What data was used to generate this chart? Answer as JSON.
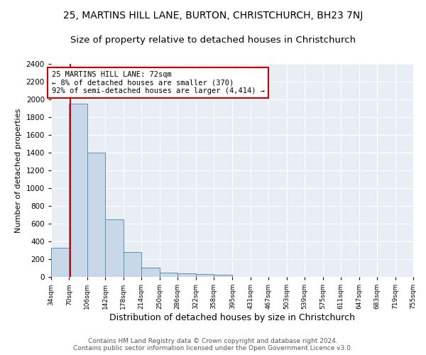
{
  "title1": "25, MARTINS HILL LANE, BURTON, CHRISTCHURCH, BH23 7NJ",
  "title2": "Size of property relative to detached houses in Christchurch",
  "xlabel": "Distribution of detached houses by size in Christchurch",
  "ylabel": "Number of detached properties",
  "footnote": "Contains HM Land Registry data © Crown copyright and database right 2024.\nContains public sector information licensed under the Open Government Licence v3.0.",
  "bin_edges": [
    34,
    70,
    106,
    142,
    178,
    214,
    250,
    286,
    322,
    358,
    395,
    431,
    467,
    503,
    539,
    575,
    611,
    647,
    683,
    719,
    755
  ],
  "bar_heights": [
    325,
    1950,
    1400,
    650,
    280,
    105,
    45,
    40,
    35,
    22,
    0,
    0,
    0,
    0,
    0,
    0,
    0,
    0,
    0,
    0
  ],
  "bar_color": "#c8d8e8",
  "bar_edgecolor": "#6090b0",
  "property_size": 72,
  "annotation_text": "25 MARTINS HILL LANE: 72sqm\n← 8% of detached houses are smaller (370)\n92% of semi-detached houses are larger (4,414) →",
  "annotation_box_color": "#cc0000",
  "vline_color": "#cc0000",
  "ylim": [
    0,
    2400
  ],
  "yticks": [
    0,
    200,
    400,
    600,
    800,
    1000,
    1200,
    1400,
    1600,
    1800,
    2000,
    2200,
    2400
  ],
  "bg_color": "#e8eef4",
  "grid_color": "#ffffff",
  "title1_fontsize": 10,
  "title2_fontsize": 9.5,
  "xlabel_fontsize": 9,
  "ylabel_fontsize": 8,
  "footnote_fontsize": 6.5,
  "tick_labelsize": 7.5,
  "xtick_labelsize": 6.5
}
